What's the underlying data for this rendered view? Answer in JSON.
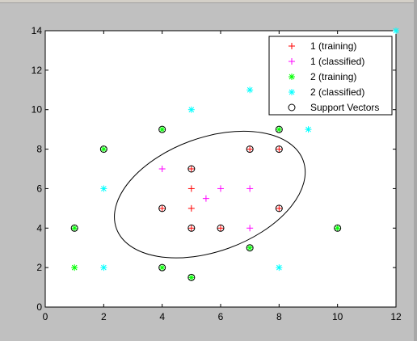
{
  "chart_data": {
    "type": "scatter",
    "title": "",
    "xlabel": "",
    "ylabel": "",
    "xlim": [
      0,
      12
    ],
    "ylim": [
      0,
      14
    ],
    "xticks": [
      0,
      2,
      4,
      6,
      8,
      10,
      12
    ],
    "yticks": [
      0,
      2,
      4,
      6,
      8,
      10,
      12,
      14
    ],
    "grid": false,
    "legend_position": "top-right",
    "series": [
      {
        "name": "1 (training)",
        "marker": "+",
        "color": "#ff0000",
        "points": [
          [
            5,
            6
          ],
          [
            5,
            5
          ],
          [
            4,
            5
          ],
          [
            5,
            4
          ],
          [
            6,
            4
          ],
          [
            7,
            8
          ],
          [
            8,
            8
          ],
          [
            8,
            5
          ],
          [
            5,
            7
          ]
        ]
      },
      {
        "name": "1 (classified)",
        "marker": "+",
        "color": "#ff00ff",
        "points": [
          [
            4,
            7
          ],
          [
            5.5,
            5.5
          ],
          [
            6,
            6
          ],
          [
            7,
            6
          ],
          [
            7,
            4
          ]
        ]
      },
      {
        "name": "2 (training)",
        "marker": "*",
        "color": "#00ff00",
        "points": [
          [
            4,
            9
          ],
          [
            8,
            9
          ],
          [
            2,
            8
          ],
          [
            1,
            4
          ],
          [
            1,
            2
          ],
          [
            4,
            2
          ],
          [
            5,
            1.5
          ],
          [
            7,
            3
          ],
          [
            10,
            4
          ]
        ]
      },
      {
        "name": "2 (classified)",
        "marker": "*",
        "color": "#00ffff",
        "points": [
          [
            12,
            14
          ],
          [
            7,
            11
          ],
          [
            5,
            10
          ],
          [
            9,
            9
          ],
          [
            2,
            6
          ],
          [
            2,
            2
          ],
          [
            8,
            2
          ]
        ]
      },
      {
        "name": "Support Vectors",
        "marker": "o",
        "color": "#000000",
        "points": [
          [
            4,
            9
          ],
          [
            8,
            9
          ],
          [
            2,
            8
          ],
          [
            1,
            4
          ],
          [
            4,
            2
          ],
          [
            5,
            1.5
          ],
          [
            7,
            3
          ],
          [
            10,
            4
          ],
          [
            5,
            7
          ],
          [
            7,
            8
          ],
          [
            8,
            8
          ],
          [
            4,
            5
          ],
          [
            8,
            5
          ],
          [
            5,
            4
          ],
          [
            6,
            4
          ]
        ]
      }
    ],
    "decision_boundary": {
      "type": "ellipse",
      "center": [
        5.63,
        5.7
      ],
      "rx": 3.4,
      "ry": 2.88,
      "rotation_deg": -20
    }
  }
}
